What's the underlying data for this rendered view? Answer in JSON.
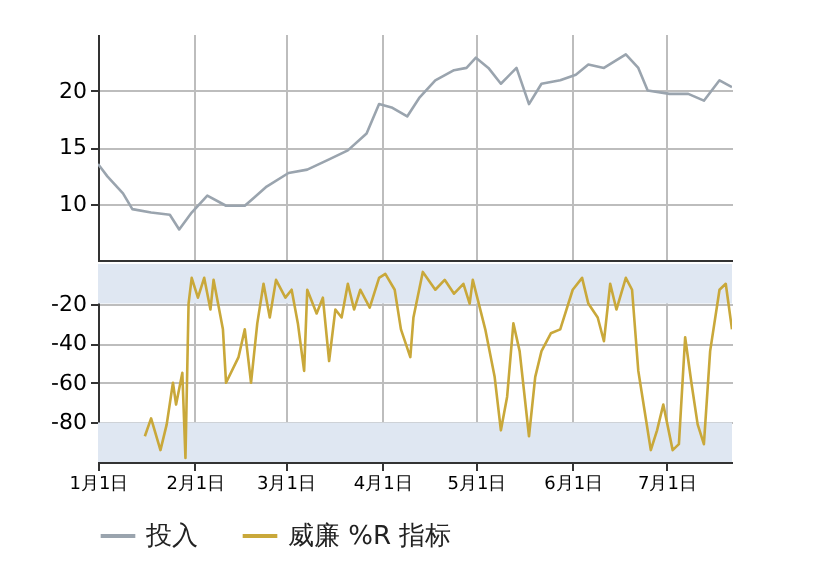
{
  "chart_data": [
    {
      "type": "line",
      "x": [
        "--01-01",
        "--01-04",
        "--01-09",
        "--01-12",
        "--01-18",
        "--01-24",
        "--01-27",
        "--01-31",
        "--02-05",
        "--02-11",
        "--02-17",
        "--02-24",
        "--03-02",
        "--03-08",
        "--03-15",
        "--03-21",
        "--03-27",
        "--03-31",
        "--04-04",
        "--04-09",
        "--04-13",
        "--04-18",
        "--04-24",
        "--04-28",
        "--05-01",
        "--05-05",
        "--05-09",
        "--05-14",
        "--05-18",
        "--05-22",
        "--05-28",
        "--06-02",
        "--06-06",
        "--06-11",
        "--06-18",
        "--06-22",
        "--06-25",
        "--07-02",
        "--07-08",
        "--07-13",
        "--07-18",
        "--07-22"
      ],
      "series": [
        {
          "name": "投入",
          "color": "#9aa4ae",
          "values": [
            13.5,
            12.4,
            10.9,
            9.5,
            9.2,
            9.0,
            7.7,
            9.2,
            10.7,
            9.8,
            9.8,
            11.5,
            12.7,
            13.0,
            13.9,
            14.7,
            16.2,
            18.8,
            18.5,
            17.7,
            19.4,
            20.9,
            21.8,
            22.0,
            22.9,
            22.0,
            20.6,
            22.0,
            18.8,
            20.6,
            20.9,
            21.4,
            22.3,
            22.0,
            23.2,
            22.0,
            20.0,
            19.7,
            19.7,
            19.1,
            20.9,
            20.3
          ]
        }
      ],
      "xlim": [
        "--01-01",
        "--07-22"
      ],
      "xticks": [
        {
          "value": "--01-01",
          "label": null
        },
        {
          "value": "--02-01",
          "label": null
        },
        {
          "value": "--03-01",
          "label": null
        },
        {
          "value": "--04-01",
          "label": null
        },
        {
          "value": "--05-01",
          "label": null
        },
        {
          "value": "--06-01",
          "label": null
        },
        {
          "value": "--07-01",
          "label": null
        }
      ],
      "ylim": [
        5,
        25
      ],
      "yticks": [
        10,
        15,
        20
      ],
      "grid": true,
      "tick_labels": "y"
    },
    {
      "type": "line",
      "x": [
        "--01-16",
        "--01-18",
        "--01-21",
        "--01-23",
        "--01-25",
        "--01-26",
        "--01-28",
        "--01-29",
        "--01-30",
        "--01-31",
        "--02-02",
        "--02-04",
        "--02-06",
        "--02-07",
        "--02-10",
        "--02-11",
        "--02-15",
        "--02-17",
        "--02-19",
        "--02-21",
        "--02-23",
        "--02-25",
        "--02-27",
        "--03-01",
        "--03-03",
        "--03-05",
        "--03-07",
        "--03-08",
        "--03-11",
        "--03-13",
        "--03-15",
        "--03-17",
        "--03-19",
        "--03-21",
        "--03-23",
        "--03-25",
        "--03-28",
        "--03-31",
        "--04-02",
        "--04-05",
        "--04-07",
        "--04-10",
        "--04-11",
        "--04-14",
        "--04-18",
        "--04-21",
        "--04-24",
        "--04-27",
        "--04-29",
        "--04-30",
        "--05-04",
        "--05-07",
        "--05-09",
        "--05-11",
        "--05-13",
        "--05-15",
        "--05-18",
        "--05-20",
        "--05-22",
        "--05-25",
        "--05-28",
        "--06-01",
        "--06-04",
        "--06-06",
        "--06-09",
        "--06-11",
        "--06-13",
        "--06-15",
        "--06-18",
        "--06-20",
        "--06-22",
        "--06-24",
        "--06-26",
        "--06-28",
        "--06-30",
        "--07-03",
        "--07-05",
        "--07-07",
        "--07-09",
        "--07-11",
        "--07-13",
        "--07-15",
        "--07-18",
        "--07-20",
        "--07-22"
      ],
      "series": [
        {
          "name": "威廉 %R 指标",
          "color": "#c9a83a",
          "values": [
            -87,
            -78,
            -94,
            -81,
            -60,
            -71,
            -55,
            -98,
            -20,
            -7,
            -17,
            -7,
            -23,
            -8,
            -33,
            -60,
            -47,
            -33,
            -60,
            -30,
            -10,
            -27,
            -8,
            -17,
            -13,
            -30,
            -54,
            -13,
            -25,
            -17,
            -49,
            -23,
            -27,
            -10,
            -23,
            -13,
            -22,
            -7,
            -5,
            -13,
            -33,
            -47,
            -27,
            -4,
            -13,
            -8,
            -15,
            -10,
            -20,
            -8,
            -33,
            -57,
            -84,
            -67,
            -30,
            -44,
            -87,
            -57,
            -44,
            -35,
            -33,
            -13,
            -7,
            -20,
            -27,
            -39,
            -10,
            -23,
            -7,
            -13,
            -54,
            -74,
            -94,
            -84,
            -71,
            -94,
            -91,
            -37,
            -60,
            -81,
            -91,
            -44,
            -13,
            -10,
            -33
          ]
        }
      ],
      "xlim": [
        "--01-01",
        "--07-22"
      ],
      "xticks": [
        {
          "value": "--01-01",
          "label": "1月1日"
        },
        {
          "value": "--02-01",
          "label": "2月1日"
        },
        {
          "value": "--03-01",
          "label": "3月1日"
        },
        {
          "value": "--04-01",
          "label": "4月1日"
        },
        {
          "value": "--05-01",
          "label": "5月1日"
        },
        {
          "value": "--06-01",
          "label": "6月1日"
        },
        {
          "value": "--07-01",
          "label": "7月1日"
        }
      ],
      "ylim": [
        -100,
        0
      ],
      "yticks": [
        -80,
        -60,
        -40,
        -20
      ],
      "bands": [
        {
          "axis": "y",
          "from": -20,
          "to": 0,
          "color": "#dfe7f2"
        },
        {
          "axis": "y",
          "from": -100,
          "to": -80,
          "color": "#dfe7f2"
        }
      ],
      "grid": true,
      "legend": "bottom"
    }
  ]
}
